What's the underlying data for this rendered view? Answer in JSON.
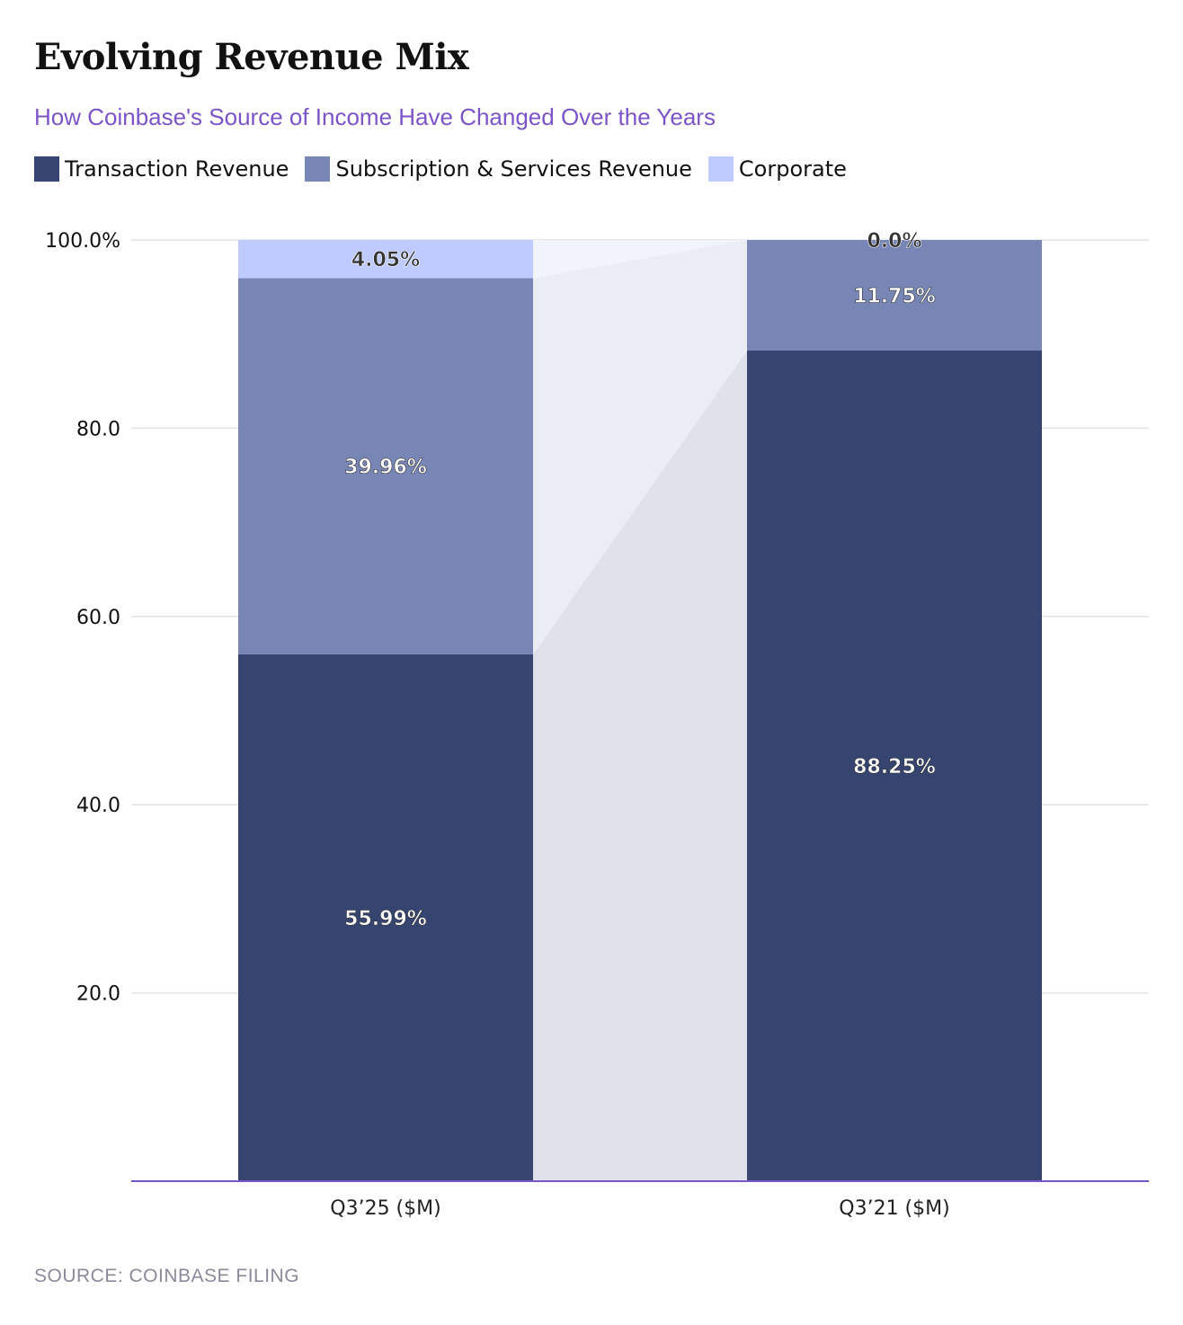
{
  "title": "Evolving Revenue Mix",
  "subtitle": "How Coinbase's Source of Income Have Changed Over the Years",
  "source": "SOURCE: COINBASE FILING",
  "colors": {
    "transaction": "#354570",
    "subscription": "#7886b6",
    "corporate": "#bfcbff",
    "connector_dark": "#dfe2ea",
    "connector_light": "#eaedf6",
    "connector_top": "#f2f4fb",
    "gridline": "#e2e2e2",
    "axis_line": "#7b55c7"
  },
  "chart_data": {
    "type": "bar",
    "stacked": true,
    "categories": [
      "Q3’25 ($M)",
      "Q3’21 ($M)"
    ],
    "series": [
      {
        "name": "Transaction Revenue",
        "values": [
          55.99,
          88.25
        ],
        "labels": [
          "55.99%",
          "88.25%"
        ]
      },
      {
        "name": "Subscription & Services Revenue",
        "values": [
          39.96,
          11.75
        ],
        "labels": [
          "39.96%",
          "11.75%"
        ]
      },
      {
        "name": "Corporate",
        "values": [
          4.05,
          0.0
        ],
        "labels": [
          "4.05%",
          "0.0%"
        ]
      }
    ],
    "yticks": [
      20,
      40,
      60,
      80,
      100
    ],
    "ytick_labels": [
      "20.0",
      "40.0",
      "60.0",
      "80.0",
      "100.0%"
    ],
    "ylim": [
      0,
      100
    ],
    "grid": true,
    "legend_position": "top-left"
  }
}
